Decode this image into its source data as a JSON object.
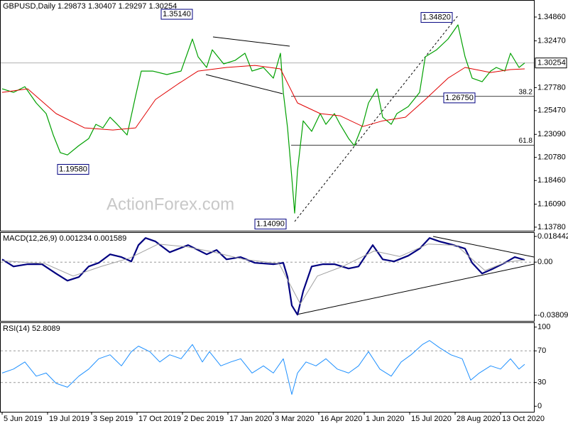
{
  "chart_data": [
    {
      "type": "line",
      "title": "GBPUSD,Daily  1.29873 1.30407 1.29297 1.30254",
      "watermark": "ActionForex.com",
      "xlim": [
        -1.5,
        374.5
      ],
      "ylim": [
        1.1342,
        1.3657
      ],
      "yticks": [
        {
          "value": 1.3486,
          "label": "1.34860"
        },
        {
          "value": 1.3247,
          "label": "1.32470"
        },
        {
          "value": 1.2778,
          "label": "1.27780"
        },
        {
          "value": 1.2547,
          "label": "1.25470"
        },
        {
          "value": 1.2309,
          "label": "1.23090"
        },
        {
          "value": 1.2078,
          "label": "1.20780"
        },
        {
          "value": 1.1846,
          "label": "1.18460"
        },
        {
          "value": 1.1609,
          "label": "1.16090"
        },
        {
          "value": 1.1378,
          "label": "1.13780"
        }
      ],
      "current_price": {
        "value": 1.30254,
        "label": "1.30254"
      },
      "fib_levels": [
        {
          "value": 1.269,
          "label": "38.2"
        },
        {
          "value": 1.2201,
          "label": "61.8"
        }
      ],
      "annotations": [
        {
          "label": "1.35140",
          "value": 1.3514,
          "x": 123
        },
        {
          "label": "1.19580",
          "value": 1.1958,
          "x": 50
        },
        {
          "label": "1.14090",
          "value": 1.1409,
          "x": 189
        },
        {
          "label": "1.34820",
          "value": 1.3482,
          "x": 306
        },
        {
          "label": "1.26750",
          "value": 1.2675,
          "x": 322
        }
      ],
      "series": [
        {
          "color": "#00a000",
          "width": 1.2,
          "x": [
            0,
            8,
            16,
            24,
            31,
            36,
            41,
            46,
            54,
            61,
            66,
            71,
            76,
            81,
            88,
            94,
            98,
            106,
            116,
            126,
            134,
            138,
            144,
            148,
            156,
            164,
            171,
            176,
            184,
            191,
            196,
            198,
            201,
            204,
            206,
            208,
            212,
            218,
            224,
            228,
            234,
            238,
            244,
            248,
            254,
            258,
            264,
            268,
            274,
            278,
            286,
            294,
            298,
            306,
            314,
            321,
            326,
            331,
            338,
            344,
            348,
            354,
            358,
            364,
            368
          ],
          "values": [
            1.2766,
            1.273,
            1.2787,
            1.2624,
            1.2517,
            1.2303,
            1.2125,
            1.2103,
            1.2196,
            1.2267,
            1.241,
            1.2374,
            1.2481,
            1.241,
            1.2303,
            1.2695,
            1.2944,
            1.2944,
            1.2909,
            1.2944,
            1.3265,
            1.3087,
            1.298,
            1.3158,
            1.3016,
            1.3051,
            1.3123,
            1.2944,
            1.298,
            1.2873,
            1.3123,
            1.273,
            1.2374,
            1.1875,
            1.1519,
            1.1946,
            1.2445,
            1.2339,
            1.2517,
            1.241,
            1.2517,
            1.241,
            1.2267,
            1.2196,
            1.241,
            1.2624,
            1.2766,
            1.2481,
            1.241,
            1.2517,
            1.2588,
            1.273,
            1.3087,
            1.3158,
            1.3265,
            1.3408,
            1.3087,
            1.2873,
            1.2837,
            1.2944,
            1.298,
            1.2944,
            1.3123,
            1.298,
            1.3025
          ]
        },
        {
          "color": "#e00000",
          "width": 1,
          "x": [
            0,
            18,
            38,
            58,
            78,
            94,
            108,
            124,
            138,
            158,
            178,
            196,
            208,
            224,
            238,
            254,
            268,
            284,
            298,
            314,
            326,
            344,
            358,
            368
          ],
          "values": [
            1.273,
            1.2766,
            1.2517,
            1.2374,
            1.2353,
            1.2374,
            1.2659,
            1.2816,
            1.2944,
            1.298,
            1.3001,
            1.2966,
            1.2624,
            1.2517,
            1.2495,
            1.2388,
            1.2445,
            1.2481,
            1.2659,
            1.2873,
            1.298,
            1.293,
            1.2959,
            1.2966
          ]
        }
      ]
    },
    {
      "type": "line",
      "title": "MACD(12,26,9) 0.001234 0.001589",
      "xlim": [
        -1.5,
        374.5
      ],
      "ylim": [
        -0.0422,
        0.0215
      ],
      "yticks": [
        0.018442,
        {
          "value": 0,
          "label": "0.00"
        },
        -0.038095
      ],
      "levels": [
        0
      ],
      "series": [
        {
          "color": "#000080",
          "width": 2.2,
          "x": [
            0,
            8,
            18,
            28,
            38,
            46,
            54,
            61,
            68,
            76,
            84,
            91,
            96,
            101,
            108,
            118,
            131,
            138,
            144,
            151,
            158,
            168,
            178,
            191,
            198,
            201,
            204,
            208,
            212,
            218,
            226,
            234,
            244,
            251,
            256,
            261,
            268,
            276,
            286,
            294,
            301,
            308,
            318,
            326,
            331,
            338,
            346,
            354,
            361,
            368
          ],
          "values": [
            0.002,
            -0.0031,
            -0.0015,
            -0.0015,
            -0.0082,
            -0.0133,
            -0.0107,
            -0.0031,
            -0.0005,
            0.0056,
            0.0036,
            0.0005,
            0.0122,
            0.0173,
            0.0148,
            0.0071,
            0.0122,
            0.0087,
            0.0056,
            0.0087,
            0.002,
            0.0036,
            -0.0005,
            -0.0015,
            -0.0005,
            -0.0107,
            -0.0311,
            -0.0377,
            -0.0209,
            -0.0031,
            -0.0015,
            -0.0015,
            -0.0046,
            -0.0031,
            0.0046,
            0.0122,
            0.002,
            0.0005,
            0.0046,
            0.0097,
            0.0173,
            0.0148,
            0.0122,
            0.0097,
            -0.0005,
            -0.0082,
            -0.0046,
            -0.0005,
            0.0036,
            0.0015
          ]
        },
        {
          "color": "#a0a0a0",
          "width": 1,
          "x": [
            0,
            30,
            50,
            70,
            90,
            110,
            130,
            150,
            170,
            195,
            210,
            222,
            240,
            262,
            280,
            300,
            320,
            340,
            355,
            368
          ],
          "values": [
            0.001,
            -0.001,
            -0.01,
            -0.003,
            0.003,
            0.013,
            0.011,
            0.007,
            0.002,
            -0.001,
            -0.03,
            -0.01,
            -0.003,
            0.008,
            0.004,
            0.013,
            0.012,
            -0.006,
            0.0,
            0.0016
          ]
        }
      ]
    },
    {
      "type": "line",
      "title": "RSI(14) 52.8089",
      "xlim": [
        -1.5,
        374.5
      ],
      "ylim": [
        -7,
        106
      ],
      "yticks": [
        100,
        70,
        30,
        0
      ],
      "levels": [
        70,
        30
      ],
      "xticks": [
        {
          "value": 0,
          "label": "5 Jun 2019"
        },
        {
          "value": 32,
          "label": "19 Jul 2019"
        },
        {
          "value": 63,
          "label": "3 Sep 2019"
        },
        {
          "value": 95,
          "label": "17 Oct 2019"
        },
        {
          "value": 127,
          "label": "2 Dec 2019"
        },
        {
          "value": 159,
          "label": "17 Jan 2020"
        },
        {
          "value": 191,
          "label": "3 Mar 2020"
        },
        {
          "value": 223,
          "label": "16 Apr 2020"
        },
        {
          "value": 255,
          "label": "1 Jun 2020"
        },
        {
          "value": 287,
          "label": "15 Jul 2020"
        },
        {
          "value": 319,
          "label": "28 Aug 2020"
        },
        {
          "value": 351,
          "label": "13 Oct 2020"
        }
      ],
      "series": [
        {
          "color": "#1e90ff",
          "width": 1,
          "x": [
            0,
            8,
            16,
            24,
            31,
            38,
            46,
            54,
            61,
            68,
            76,
            84,
            91,
            96,
            104,
            111,
            118,
            126,
            134,
            141,
            146,
            154,
            161,
            168,
            176,
            184,
            191,
            198,
            204,
            208,
            214,
            221,
            228,
            236,
            244,
            251,
            258,
            266,
            274,
            281,
            288,
            296,
            301,
            308,
            316,
            324,
            330,
            336,
            344,
            351,
            358,
            364,
            368
          ],
          "values": [
            42,
            47,
            56,
            38,
            42,
            29,
            24,
            38,
            47,
            60,
            65,
            51,
            69,
            76,
            69,
            56,
            65,
            60,
            78,
            56,
            69,
            51,
            56,
            60,
            42,
            51,
            42,
            60,
            15,
            42,
            56,
            51,
            60,
            47,
            42,
            51,
            69,
            47,
            38,
            56,
            65,
            78,
            83,
            74,
            65,
            60,
            33,
            42,
            51,
            47,
            60,
            47,
            53
          ]
        }
      ]
    }
  ]
}
